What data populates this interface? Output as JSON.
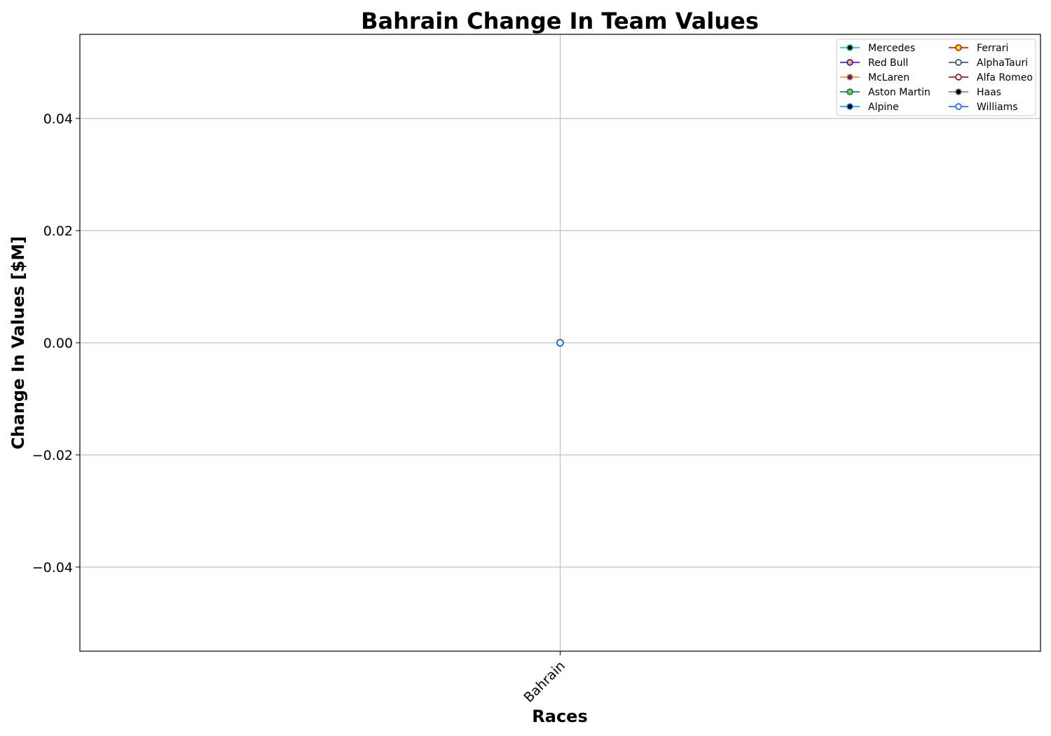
{
  "chart_data": {
    "type": "line",
    "title": "Bahrain Change In Team Values",
    "xlabel": "Races",
    "ylabel": "Change In Values [$M]",
    "categories": [
      "Bahrain"
    ],
    "ylim": [
      -0.055,
      0.055
    ],
    "yticks": [
      -0.04,
      -0.02,
      0.0,
      0.02,
      0.04
    ],
    "ytick_labels": [
      "−0.04",
      "−0.02",
      "0.00",
      "0.02",
      "0.04"
    ],
    "grid": true,
    "legend_placement": "top-right",
    "legend_columns": 2,
    "series": [
      {
        "name": "Mercedes",
        "values": [
          0
        ],
        "line_color": "#00c2b2",
        "marker_fill": "#000000"
      },
      {
        "name": "Red Bull",
        "values": [
          0
        ],
        "line_color": "#1e00d6",
        "marker_fill": "#f2b84b"
      },
      {
        "name": "McLaren",
        "values": [
          0
        ],
        "line_color": "#ff8700",
        "marker_fill": "#4b1fa8"
      },
      {
        "name": "Aston Martin",
        "values": [
          0
        ],
        "line_color": "#006f62",
        "marker_fill": "#6ccf3f"
      },
      {
        "name": "Alpine",
        "values": [
          0
        ],
        "line_color": "#0090ff",
        "marker_fill": "#000000"
      },
      {
        "name": "Ferrari",
        "values": [
          0
        ],
        "line_color": "#dc0000",
        "marker_fill": "#fff200"
      },
      {
        "name": "AlphaTauri",
        "values": [
          0
        ],
        "line_color": "#2b4562",
        "marker_fill": "#ffffff"
      },
      {
        "name": "Alfa Romeo",
        "values": [
          0
        ],
        "line_color": "#900000",
        "marker_fill": "#ffffff"
      },
      {
        "name": "Haas",
        "values": [
          0
        ],
        "line_color": "#787878",
        "marker_fill": "#000000"
      },
      {
        "name": "Williams",
        "values": [
          0
        ],
        "line_color": "#005aff",
        "marker_fill": "#ffffff"
      }
    ]
  }
}
